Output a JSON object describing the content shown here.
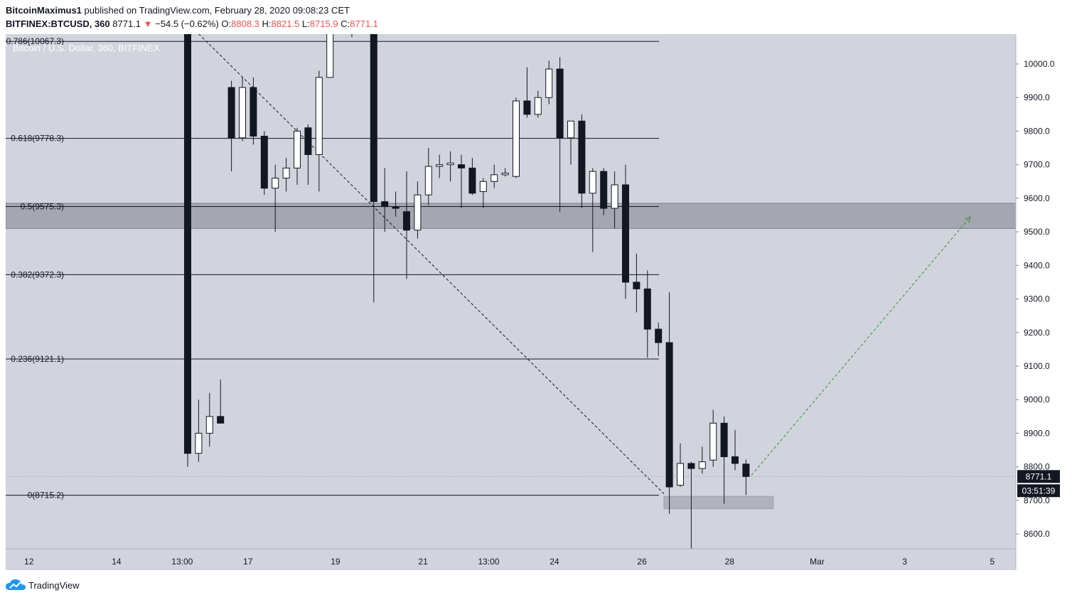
{
  "header": {
    "author": "BitcoinMaximus1",
    "published_text": "published on TradingView.com, February 28, 2020 09:08:23 CET",
    "symbol": "BITFINEX:BTCUSD, 360",
    "last": "8771.1",
    "change": "−54.5 (−0.62%)",
    "open_label": "O:",
    "open": "8808.3",
    "high_label": "H:",
    "high": "8821.5",
    "low_label": "L:",
    "low": "8715.9",
    "close_label": "C:",
    "close": "8771.1",
    "pane_title": "Bitcoin / U.S. Dollar, 360, BITFINEX"
  },
  "footer": {
    "brand": "TradingView"
  },
  "colors": {
    "background": "#d1d4dc",
    "axis_bg": "#ffffff",
    "down_candle": "#131722",
    "up_candle": "#ffffff",
    "zone": "#9598a1",
    "up_arrow": "#388e3c"
  },
  "chart_data": {
    "type": "candlestick",
    "ylim": [
      8545,
      10150
    ],
    "y_ticks": [
      8600,
      8700,
      8800,
      8900,
      9000,
      9100,
      9200,
      9300,
      9400,
      9500,
      9600,
      9700,
      9800,
      9900,
      10000
    ],
    "x_ticks": [
      {
        "label": "12",
        "x": 0.5
      },
      {
        "label": "14",
        "x": 8.5
      },
      {
        "label": "13:00",
        "x": 14.5
      },
      {
        "label": "17",
        "x": 20.5
      },
      {
        "label": "19",
        "x": 28.5
      },
      {
        "label": "21",
        "x": 36.5
      },
      {
        "label": "13:00",
        "x": 42.5
      },
      {
        "label": "24",
        "x": 48.5
      },
      {
        "label": "26",
        "x": 56.5
      },
      {
        "label": "28",
        "x": 64.5
      },
      {
        "label": "Mar",
        "x": 72.5
      },
      {
        "label": "3",
        "x": 80.5
      },
      {
        "label": "5",
        "x": 88.5
      }
    ],
    "fib_levels": [
      {
        "label": "0.786(10067.3)",
        "value": 10067.3
      },
      {
        "label": "0.618(9778.3)",
        "value": 9778.3
      },
      {
        "label": "0.5(9575.3)",
        "value": 9575.3
      },
      {
        "label": "0.382(9372.3)",
        "value": 9372.3
      },
      {
        "label": "0.236(9121.1)",
        "value": 9121.1
      },
      {
        "label": "0(8715.2)",
        "value": 8715.2
      }
    ],
    "support_zone": {
      "from": 9510,
      "to": 9585
    },
    "demand_zone": {
      "x_start": 58.5,
      "x_end": 68.5,
      "from": 8675,
      "to": 8712
    },
    "fib_trend_line": {
      "x1": 16,
      "y1": 10090,
      "x2": 58.5,
      "y2": 8720
    },
    "projection_arrow": {
      "x1": 66.5,
      "y1": 8775,
      "x2": 86.5,
      "y2": 9545
    },
    "last_price": {
      "value": 8771.1,
      "label": "8771.1",
      "countdown": "03:51:39"
    },
    "candles": [
      {
        "x": 15,
        "o": 10150,
        "h": 10150,
        "l": 8800,
        "c": 8840
      },
      {
        "x": 16,
        "o": 8840,
        "h": 9000,
        "l": 8815,
        "c": 8900
      },
      {
        "x": 17,
        "o": 8900,
        "h": 9020,
        "l": 8860,
        "c": 8950
      },
      {
        "x": 18,
        "o": 8950,
        "h": 9060,
        "l": 8930,
        "c": 8930
      },
      {
        "x": 19,
        "o": 9930,
        "h": 9950,
        "l": 9680,
        "c": 9780
      },
      {
        "x": 20,
        "o": 9780,
        "h": 9960,
        "l": 9770,
        "c": 9930
      },
      {
        "x": 21,
        "o": 9930,
        "h": 9960,
        "l": 9760,
        "c": 9785
      },
      {
        "x": 22,
        "o": 9785,
        "h": 9800,
        "l": 9610,
        "c": 9630
      },
      {
        "x": 23,
        "o": 9630,
        "h": 9700,
        "l": 9500,
        "c": 9660
      },
      {
        "x": 24,
        "o": 9660,
        "h": 9720,
        "l": 9620,
        "c": 9690
      },
      {
        "x": 25,
        "o": 9690,
        "h": 9810,
        "l": 9640,
        "c": 9800
      },
      {
        "x": 26,
        "o": 9810,
        "h": 9820,
        "l": 9640,
        "c": 9730
      },
      {
        "x": 27,
        "o": 9730,
        "h": 9980,
        "l": 9620,
        "c": 9960
      },
      {
        "x": 28,
        "o": 9960,
        "h": 10150,
        "l": 9960,
        "c": 10150
      },
      {
        "x": 30,
        "o": 10150,
        "h": 10150,
        "l": 10080,
        "c": 10140
      },
      {
        "x": 31,
        "o": 10140,
        "h": 10150,
        "l": 10110,
        "c": 10120
      },
      {
        "x": 32,
        "o": 10150,
        "h": 10150,
        "l": 9290,
        "c": 9590
      },
      {
        "x": 33,
        "o": 9590,
        "h": 9690,
        "l": 9500,
        "c": 9575
      },
      {
        "x": 34,
        "o": 9575,
        "h": 9620,
        "l": 9545,
        "c": 9570
      },
      {
        "x": 35,
        "o": 9560,
        "h": 9680,
        "l": 9360,
        "c": 9505
      },
      {
        "x": 36,
        "o": 9505,
        "h": 9650,
        "l": 9480,
        "c": 9610
      },
      {
        "x": 37,
        "o": 9610,
        "h": 9750,
        "l": 9580,
        "c": 9695
      },
      {
        "x": 38,
        "o": 9695,
        "h": 9730,
        "l": 9660,
        "c": 9700
      },
      {
        "x": 39,
        "o": 9700,
        "h": 9740,
        "l": 9650,
        "c": 9705
      },
      {
        "x": 40,
        "o": 9700,
        "h": 9730,
        "l": 9570,
        "c": 9690
      },
      {
        "x": 41,
        "o": 9690,
        "h": 9720,
        "l": 9610,
        "c": 9615
      },
      {
        "x": 42,
        "o": 9620,
        "h": 9660,
        "l": 9570,
        "c": 9650
      },
      {
        "x": 43,
        "o": 9650,
        "h": 9700,
        "l": 9630,
        "c": 9670
      },
      {
        "x": 44,
        "o": 9670,
        "h": 9690,
        "l": 9665,
        "c": 9675
      },
      {
        "x": 45,
        "o": 9665,
        "h": 9900,
        "l": 9660,
        "c": 9890
      },
      {
        "x": 46,
        "o": 9890,
        "h": 9990,
        "l": 9840,
        "c": 9850
      },
      {
        "x": 47,
        "o": 9850,
        "h": 9920,
        "l": 9840,
        "c": 9900
      },
      {
        "x": 48,
        "o": 9900,
        "h": 10010,
        "l": 9880,
        "c": 9985
      },
      {
        "x": 49,
        "o": 9985,
        "h": 10020,
        "l": 9560,
        "c": 9780
      },
      {
        "x": 50,
        "o": 9780,
        "h": 9830,
        "l": 9700,
        "c": 9830
      },
      {
        "x": 51,
        "o": 9830,
        "h": 9850,
        "l": 9570,
        "c": 9615
      },
      {
        "x": 52,
        "o": 9615,
        "h": 9690,
        "l": 9440,
        "c": 9680
      },
      {
        "x": 53,
        "o": 9680,
        "h": 9690,
        "l": 9550,
        "c": 9570
      },
      {
        "x": 54,
        "o": 9570,
        "h": 9680,
        "l": 9510,
        "c": 9640
      },
      {
        "x": 55,
        "o": 9640,
        "h": 9700,
        "l": 9300,
        "c": 9350
      },
      {
        "x": 56,
        "o": 9350,
        "h": 9435,
        "l": 9260,
        "c": 9330
      },
      {
        "x": 57,
        "o": 9330,
        "h": 9385,
        "l": 9125,
        "c": 9210
      },
      {
        "x": 58,
        "o": 9210,
        "h": 9230,
        "l": 9130,
        "c": 9170
      },
      {
        "x": 59,
        "o": 9170,
        "h": 9320,
        "l": 8660,
        "c": 8740
      },
      {
        "x": 60,
        "o": 8745,
        "h": 8870,
        "l": 8740,
        "c": 8810
      },
      {
        "x": 61,
        "o": 8810,
        "h": 8815,
        "l": 8550,
        "c": 8795
      },
      {
        "x": 62,
        "o": 8795,
        "h": 8860,
        "l": 8780,
        "c": 8815
      },
      {
        "x": 63,
        "o": 8820,
        "h": 8970,
        "l": 8800,
        "c": 8930
      },
      {
        "x": 64,
        "o": 8930,
        "h": 8950,
        "l": 8690,
        "c": 8830
      },
      {
        "x": 65,
        "o": 8830,
        "h": 8910,
        "l": 8790,
        "c": 8810
      },
      {
        "x": 66,
        "o": 8808.3,
        "h": 8821.5,
        "l": 8715.9,
        "c": 8771.1
      }
    ]
  }
}
